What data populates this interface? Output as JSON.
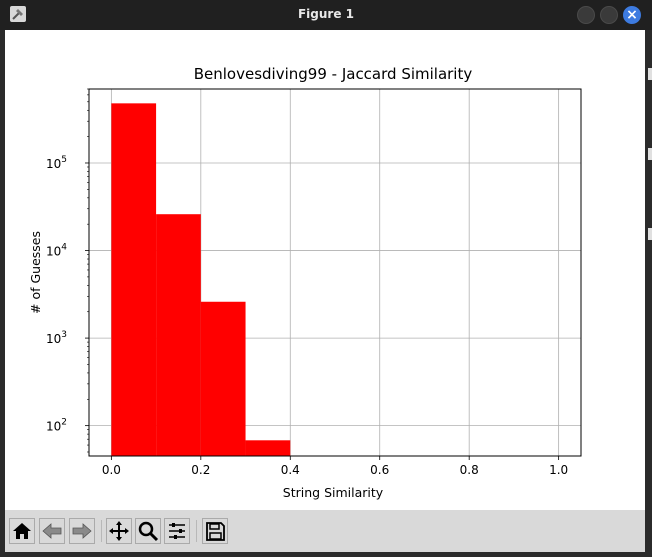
{
  "window": {
    "title": "Figure 1"
  },
  "toolbar": {
    "buttons": [
      {
        "icon": "home-icon",
        "label": "Home"
      },
      {
        "icon": "back-arrow-icon",
        "label": "Back"
      },
      {
        "icon": "forward-arrow-icon",
        "label": "Forward"
      },
      {
        "icon": "pan-icon",
        "label": "Pan"
      },
      {
        "icon": "zoom-icon",
        "label": "Zoom"
      },
      {
        "icon": "subplots-icon",
        "label": "Subplots"
      },
      {
        "icon": "save-icon",
        "label": "Save"
      }
    ]
  },
  "chart_data": {
    "type": "bar",
    "title": "Benlovesdiving99 - Jaccard Similarity",
    "xlabel": "String Similarity",
    "ylabel": "# of Guesses",
    "yscale": "log",
    "bins": [
      {
        "x0": 0.0,
        "x1": 0.1,
        "value": 480000
      },
      {
        "x0": 0.1,
        "x1": 0.2,
        "value": 26000
      },
      {
        "x0": 0.2,
        "x1": 0.3,
        "value": 2600
      },
      {
        "x0": 0.3,
        "x1": 0.4,
        "value": 68
      }
    ],
    "xlim": [
      -0.05,
      1.05
    ],
    "ylim": [
      45,
      700000
    ],
    "xticks": [
      {
        "value": 0.0,
        "label": "0.0"
      },
      {
        "value": 0.2,
        "label": "0.2"
      },
      {
        "value": 0.4,
        "label": "0.4"
      },
      {
        "value": 0.6,
        "label": "0.6"
      },
      {
        "value": 0.8,
        "label": "0.8"
      },
      {
        "value": 1.0,
        "label": "1.0"
      }
    ],
    "yticks": [
      {
        "value": 100,
        "base": "10",
        "exp": "2"
      },
      {
        "value": 1000,
        "base": "10",
        "exp": "3"
      },
      {
        "value": 10000,
        "base": "10",
        "exp": "4"
      },
      {
        "value": 100000,
        "base": "10",
        "exp": "5"
      }
    ],
    "grid": true,
    "bar_color": "#ff0000",
    "legend": false
  }
}
